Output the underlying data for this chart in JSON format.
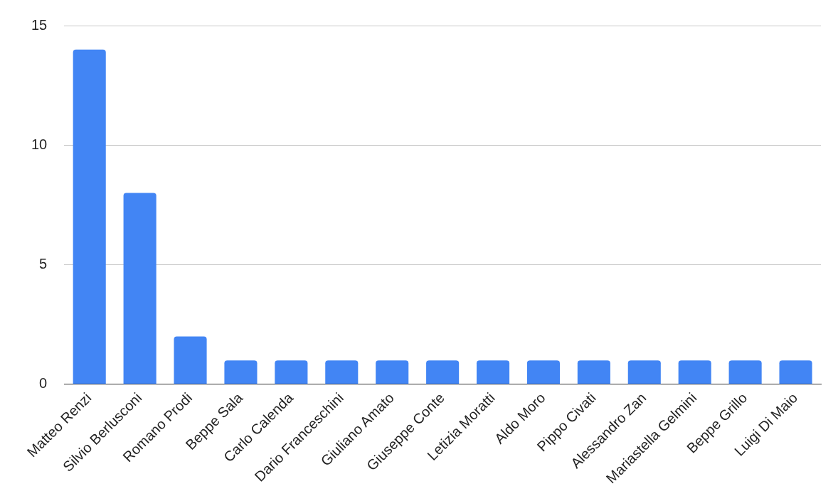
{
  "chart_data": {
    "type": "bar",
    "categories": [
      "Matteo Renzi",
      "Silvio Berlusconi",
      "Romano Prodi",
      "Beppe Sala",
      "Carlo Calenda",
      "Dario Franceschini",
      "Giuliano Amato",
      "Giuseppe Conte",
      "Letizia Moratti",
      "Aldo Moro",
      "Pippo Civati",
      "Alessandro Zan",
      "Mariastella Gelmini",
      "Beppe Grillo",
      "Luigi Di Maio"
    ],
    "values": [
      14,
      8,
      2,
      1,
      1,
      1,
      1,
      1,
      1,
      1,
      1,
      1,
      1,
      1,
      1
    ],
    "color": "#4285f4",
    "ylim": [
      0,
      15
    ],
    "yticks": [
      0,
      5,
      10,
      15
    ],
    "grid": "y",
    "legend": false
  }
}
